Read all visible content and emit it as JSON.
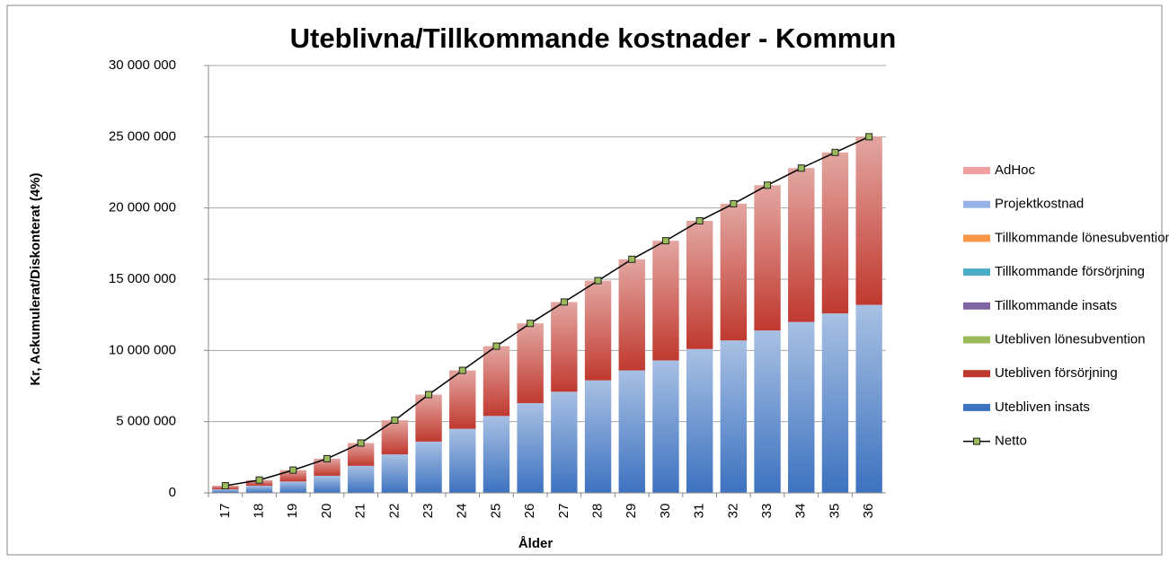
{
  "chart_data": {
    "type": "bar",
    "stacked": true,
    "title": "Uteblivna/Tillkommande kostnader - Kommun",
    "xlabel": "Ålder",
    "ylabel": "Kr, Ackumulerat/Diskonterat (4%)",
    "categories": [
      "17",
      "18",
      "19",
      "20",
      "21",
      "22",
      "23",
      "24",
      "25",
      "26",
      "27",
      "28",
      "29",
      "30",
      "31",
      "32",
      "33",
      "34",
      "35",
      "36"
    ],
    "ylim": [
      0,
      30000000
    ],
    "yticks": [
      {
        "value": 0,
        "label": "0"
      },
      {
        "value": 5000000,
        "label": "5 000 000"
      },
      {
        "value": 10000000,
        "label": "10 000 000"
      },
      {
        "value": 15000000,
        "label": "15 000 000"
      },
      {
        "value": 20000000,
        "label": "20 000 000"
      },
      {
        "value": 25000000,
        "label": "25 000 000"
      },
      {
        "value": 30000000,
        "label": "30 000 000"
      }
    ],
    "grid": true,
    "legend": "right",
    "series": [
      {
        "name": "Utebliven insats",
        "color": "#3d72c0",
        "values": [
          250000,
          500000,
          800000,
          1200000,
          1900000,
          2700000,
          3600000,
          4500000,
          5400000,
          6300000,
          7100000,
          7900000,
          8600000,
          9300000,
          10100000,
          10700000,
          11400000,
          12000000,
          12600000,
          13200000
        ]
      },
      {
        "name": "Utebliven försörjning",
        "color": "#c0392f",
        "values": [
          250000,
          400000,
          800000,
          1200000,
          1600000,
          2400000,
          3300000,
          4100000,
          4900000,
          5600000,
          6300000,
          7000000,
          7800000,
          8400000,
          9000000,
          9600000,
          10200000,
          10800000,
          11300000,
          11800000
        ]
      },
      {
        "name": "Utebliven lönesubvention",
        "color": "#9bbb59",
        "values": [
          0,
          0,
          0,
          0,
          0,
          0,
          0,
          0,
          0,
          0,
          0,
          0,
          0,
          0,
          0,
          0,
          0,
          0,
          0,
          0
        ]
      },
      {
        "name": "Tillkommande insats",
        "color": "#8064a2",
        "values": [
          0,
          0,
          0,
          0,
          0,
          0,
          0,
          0,
          0,
          0,
          0,
          0,
          0,
          0,
          0,
          0,
          0,
          0,
          0,
          0
        ]
      },
      {
        "name": "Tillkommande försörjning",
        "color": "#4bacc6",
        "values": [
          0,
          0,
          0,
          0,
          0,
          0,
          0,
          0,
          0,
          0,
          0,
          0,
          0,
          0,
          0,
          0,
          0,
          0,
          0,
          0
        ]
      },
      {
        "name": "Tillkommande lönesubvention",
        "color": "#f79646",
        "values": [
          0,
          0,
          0,
          0,
          0,
          0,
          0,
          0,
          0,
          0,
          0,
          0,
          0,
          0,
          0,
          0,
          0,
          0,
          0,
          0
        ]
      },
      {
        "name": "Projektkostnad",
        "color": "#95b3e7",
        "values": [
          0,
          0,
          0,
          0,
          0,
          0,
          0,
          0,
          0,
          0,
          0,
          0,
          0,
          0,
          0,
          0,
          0,
          0,
          0,
          0
        ]
      },
      {
        "name": "AdHoc",
        "color": "#f0a0a0",
        "values": [
          0,
          0,
          0,
          0,
          0,
          0,
          0,
          0,
          0,
          0,
          0,
          0,
          0,
          0,
          0,
          0,
          0,
          0,
          0,
          0
        ]
      },
      {
        "name": "Netto",
        "type": "line",
        "color": "#000000",
        "values": [
          500000,
          900000,
          1600000,
          2400000,
          3500000,
          5100000,
          6900000,
          8600000,
          10300000,
          11900000,
          13400000,
          14900000,
          16400000,
          17700000,
          19100000,
          20300000,
          21600000,
          22800000,
          23900000,
          25000000
        ]
      }
    ]
  }
}
